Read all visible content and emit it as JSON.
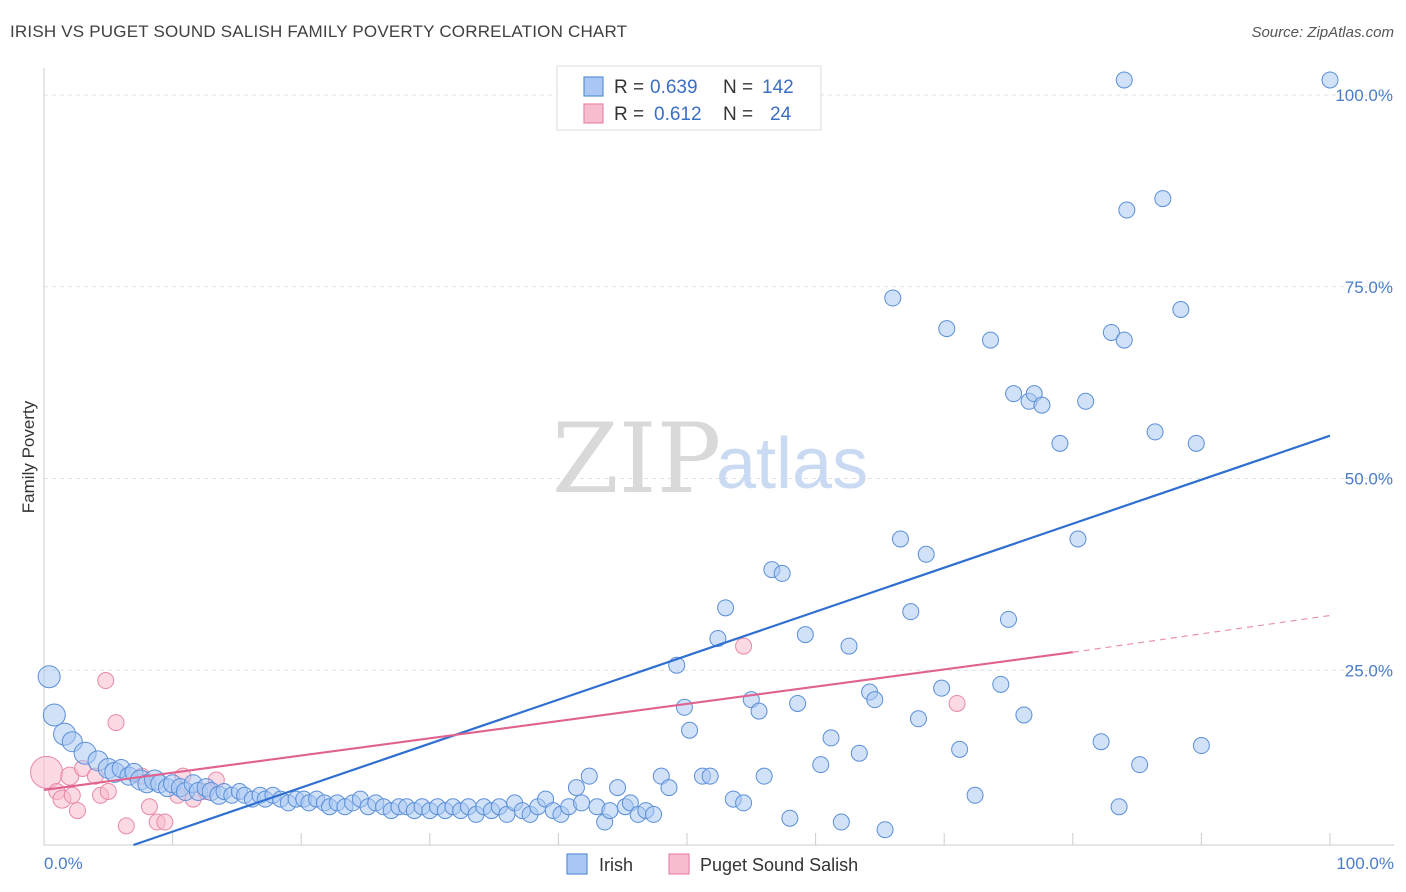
{
  "title": "IRISH VS PUGET SOUND SALISH FAMILY POVERTY CORRELATION CHART",
  "source": "Source: ZipAtlas.com",
  "watermark": {
    "zip": "ZIP",
    "atlas": "atlas"
  },
  "colors": {
    "irish_fill": "#aac8f3",
    "irish_stroke": "#5b8fd8",
    "irish_line": "#2f6fd0",
    "salish_fill": "#f7bccd",
    "salish_stroke": "#e889a6",
    "salish_line": "#e0628f",
    "grid": "#e0e0e0",
    "tick_text": "#4a7cc9"
  },
  "legend": {
    "rows": [
      {
        "r_label": "R =",
        "r_value": "0.639",
        "n_label": "N =",
        "n_value": "142"
      },
      {
        "r_label": "R =",
        "r_value": "0.612",
        "n_label": "N =",
        "n_value": "24"
      }
    ]
  },
  "bottom_legend": [
    "Irish",
    "Puget Sound Salish"
  ],
  "chart_data": {
    "type": "scatter",
    "title": "IRISH VS PUGET SOUND SALISH FAMILY POVERTY CORRELATION CHART",
    "xlabel": "",
    "ylabel": "Family Poverty",
    "xlim": [
      0,
      100
    ],
    "ylim": [
      0,
      100
    ],
    "x_ticks": [
      "0.0%",
      "100.0%"
    ],
    "y_ticks": [
      "25.0%",
      "50.0%",
      "75.0%",
      "100.0%"
    ],
    "y_tick_values": [
      25,
      50,
      75,
      100
    ],
    "grid": true,
    "legend_position": "top-center",
    "series": [
      {
        "name": "Irish",
        "r": 0.639,
        "n": 142,
        "trend": {
          "x": [
            0,
            100
          ],
          "y": [
            -4,
            53.5
          ]
        },
        "points": [
          [
            0.4,
            22,
            11
          ],
          [
            0.8,
            17,
            11
          ],
          [
            1.6,
            14.5,
            11
          ],
          [
            2.2,
            13.5,
            10
          ],
          [
            3.2,
            12,
            11
          ],
          [
            4.2,
            11,
            10
          ],
          [
            5,
            10,
            10
          ],
          [
            5.5,
            9.5,
            10
          ],
          [
            6,
            10,
            9
          ],
          [
            6.6,
            9,
            9
          ],
          [
            7,
            9.5,
            9
          ],
          [
            7.5,
            8.5,
            10
          ],
          [
            8,
            8,
            9
          ],
          [
            8.6,
            8.5,
            10
          ],
          [
            9,
            8,
            9
          ],
          [
            9.6,
            7.5,
            9
          ],
          [
            10,
            8,
            9
          ],
          [
            10.6,
            7.5,
            9
          ],
          [
            11,
            7,
            9
          ],
          [
            11.6,
            8,
            9
          ],
          [
            12,
            7,
            9
          ],
          [
            12.6,
            7.5,
            9
          ],
          [
            13,
            7,
            9
          ],
          [
            13.6,
            6.5,
            9
          ],
          [
            14,
            7,
            8
          ],
          [
            14.6,
            6.5,
            8
          ],
          [
            15.2,
            7,
            8
          ],
          [
            15.6,
            6.5,
            8
          ],
          [
            16.2,
            6,
            8
          ],
          [
            16.8,
            6.5,
            8
          ],
          [
            17.2,
            6,
            8
          ],
          [
            17.8,
            6.5,
            8
          ],
          [
            18.4,
            6,
            8
          ],
          [
            19,
            5.5,
            8
          ],
          [
            19.6,
            6,
            8
          ],
          [
            20.2,
            6,
            8
          ],
          [
            20.6,
            5.5,
            8
          ],
          [
            21.2,
            6,
            8
          ],
          [
            21.8,
            5.5,
            8
          ],
          [
            22.2,
            5,
            8
          ],
          [
            22.8,
            5.5,
            8
          ],
          [
            23.4,
            5,
            8
          ],
          [
            24,
            5.5,
            8
          ],
          [
            24.6,
            6,
            8
          ],
          [
            25.2,
            5,
            8
          ],
          [
            25.8,
            5.5,
            8
          ],
          [
            26.4,
            5,
            8
          ],
          [
            27,
            4.5,
            8
          ],
          [
            27.6,
            5,
            8
          ],
          [
            28.2,
            5,
            8
          ],
          [
            28.8,
            4.5,
            8
          ],
          [
            29.4,
            5,
            8
          ],
          [
            30,
            4.5,
            8
          ],
          [
            30.6,
            5,
            8
          ],
          [
            31.2,
            4.5,
            8
          ],
          [
            31.8,
            5,
            8
          ],
          [
            32.4,
            4.5,
            8
          ],
          [
            33,
            5,
            8
          ],
          [
            33.6,
            4,
            8
          ],
          [
            34.2,
            5,
            8
          ],
          [
            34.8,
            4.5,
            8
          ],
          [
            35.4,
            5,
            8
          ],
          [
            36,
            4,
            8
          ],
          [
            36.6,
            5.5,
            8
          ],
          [
            37.2,
            4.5,
            8
          ],
          [
            37.8,
            4,
            8
          ],
          [
            38.4,
            5,
            8
          ],
          [
            39,
            6,
            8
          ],
          [
            39.6,
            4.5,
            8
          ],
          [
            40.2,
            4,
            8
          ],
          [
            40.8,
            5,
            8
          ],
          [
            41.4,
            7.5,
            8
          ],
          [
            41.8,
            5.5,
            8
          ],
          [
            42.4,
            9,
            8
          ],
          [
            43,
            5,
            8
          ],
          [
            43.6,
            3,
            8
          ],
          [
            44,
            4.5,
            8
          ],
          [
            44.6,
            7.5,
            8
          ],
          [
            45.2,
            5,
            8
          ],
          [
            45.6,
            5.5,
            8
          ],
          [
            46.2,
            4,
            8
          ],
          [
            46.8,
            4.5,
            8
          ],
          [
            47.4,
            4,
            8
          ],
          [
            48,
            9,
            8
          ],
          [
            48.6,
            7.5,
            8
          ],
          [
            49.2,
            23.5,
            8
          ],
          [
            49.8,
            18,
            8
          ],
          [
            50.2,
            15,
            8
          ],
          [
            51.2,
            9,
            8
          ],
          [
            51.8,
            9,
            8
          ],
          [
            52.4,
            27,
            8
          ],
          [
            53,
            31,
            8
          ],
          [
            53.6,
            6,
            8
          ],
          [
            54.4,
            5.5,
            8
          ],
          [
            55,
            19,
            8
          ],
          [
            55.6,
            17.5,
            8
          ],
          [
            56,
            9,
            8
          ],
          [
            56.6,
            36,
            8
          ],
          [
            57.4,
            35.5,
            8
          ],
          [
            58,
            3.5,
            8
          ],
          [
            58.6,
            18.5,
            8
          ],
          [
            59.2,
            27.5,
            8
          ],
          [
            60.4,
            10.5,
            8
          ],
          [
            61.2,
            14,
            8
          ],
          [
            62,
            3,
            8
          ],
          [
            62.6,
            26,
            8
          ],
          [
            63.4,
            12,
            8
          ],
          [
            64.2,
            20,
            8
          ],
          [
            64.6,
            19,
            8
          ],
          [
            65.4,
            2,
            8
          ],
          [
            66,
            71.5,
            8
          ],
          [
            66.6,
            40,
            8
          ],
          [
            67.4,
            30.5,
            8
          ],
          [
            68,
            16.5,
            8
          ],
          [
            68.6,
            38,
            8
          ],
          [
            69.8,
            20.5,
            8
          ],
          [
            70.2,
            67.5,
            8
          ],
          [
            71.2,
            12.5,
            8
          ],
          [
            72.4,
            6.5,
            8
          ],
          [
            73.6,
            66,
            8
          ],
          [
            74.4,
            21,
            8
          ],
          [
            75,
            29.5,
            8
          ],
          [
            75.4,
            59,
            8
          ],
          [
            76.2,
            17,
            8
          ],
          [
            76.6,
            58,
            8
          ],
          [
            77,
            59,
            8
          ],
          [
            77.6,
            57.5,
            8
          ],
          [
            79,
            52.5,
            8
          ],
          [
            80.4,
            40,
            8
          ],
          [
            81,
            58,
            8
          ],
          [
            82.2,
            13.5,
            8
          ],
          [
            83,
            67,
            8
          ],
          [
            83.6,
            5,
            8
          ],
          [
            84,
            66,
            8
          ],
          [
            85.2,
            10.5,
            8
          ],
          [
            86.4,
            54,
            8
          ],
          [
            87,
            84.5,
            8
          ],
          [
            88.4,
            70,
            8
          ],
          [
            89.6,
            52.5,
            8
          ],
          [
            90,
            13,
            8
          ],
          [
            84,
            100,
            8
          ],
          [
            100,
            100,
            8
          ],
          [
            84.2,
            83,
            8
          ]
        ]
      },
      {
        "name": "Puget Sound Salish",
        "r": 0.612,
        "n": 24,
        "trend": {
          "x": [
            0,
            80
          ],
          "y": [
            7.2,
            25.2
          ]
        },
        "trend_extension": {
          "x": [
            80,
            100
          ],
          "y": [
            25.2,
            30
          ]
        },
        "points": [
          [
            0.2,
            9.5,
            16
          ],
          [
            1,
            7,
            8
          ],
          [
            1.4,
            6,
            9
          ],
          [
            2,
            9,
            9
          ],
          [
            2.2,
            6.5,
            8
          ],
          [
            2.6,
            4.5,
            8
          ],
          [
            3,
            10,
            8
          ],
          [
            4,
            9,
            8
          ],
          [
            4.4,
            6.5,
            8
          ],
          [
            4.8,
            21.5,
            8
          ],
          [
            5,
            7,
            8
          ],
          [
            5.6,
            16,
            8
          ],
          [
            6.4,
            2.5,
            8
          ],
          [
            7.6,
            9,
            8
          ],
          [
            8.2,
            5,
            8
          ],
          [
            8.8,
            3,
            8
          ],
          [
            9.4,
            3,
            8
          ],
          [
            10.4,
            6.5,
            8
          ],
          [
            10.8,
            9,
            8
          ],
          [
            11.6,
            6,
            8
          ],
          [
            12.6,
            7,
            8
          ],
          [
            13.4,
            8.5,
            8
          ],
          [
            54.4,
            26,
            8
          ],
          [
            71,
            18.5,
            8
          ]
        ]
      }
    ]
  }
}
